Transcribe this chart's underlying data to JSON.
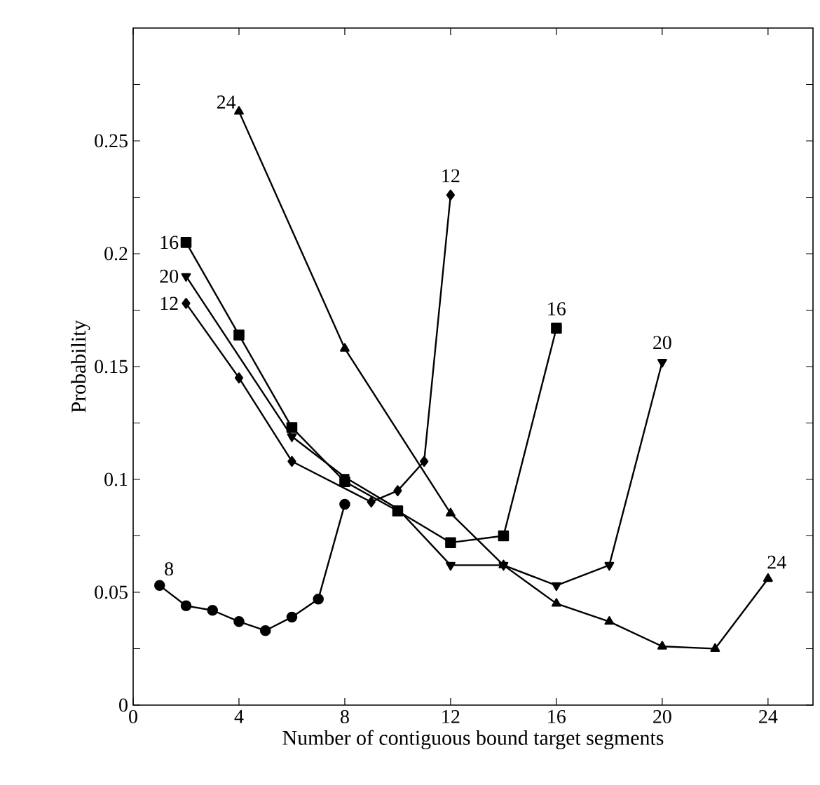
{
  "chart_data": {
    "type": "line",
    "xlabel": "Number of contiguous bound target segments",
    "ylabel": "Probability",
    "xlim": [
      0,
      25.7
    ],
    "ylim": [
      0,
      0.3
    ],
    "xticks": [
      0,
      4,
      8,
      12,
      16,
      20,
      24
    ],
    "yticks": [
      0,
      {
        "value": 0.025,
        "label": null
      },
      0.05,
      {
        "value": 0.075,
        "label": null
      },
      0.1,
      {
        "value": 0.125,
        "label": null
      },
      0.15,
      {
        "value": 0.175,
        "label": null
      },
      0.2,
      {
        "value": 0.225,
        "label": null
      },
      0.25,
      {
        "value": 0.275,
        "label": null
      }
    ],
    "line_style": "solid",
    "series": [
      {
        "color": "#000000",
        "marker": "circle",
        "x": [
          1,
          2,
          3,
          4,
          5,
          6,
          7,
          8
        ],
        "values": [
          0.053,
          0.044,
          0.042,
          0.037,
          0.033,
          0.039,
          0.047,
          0.089
        ]
      },
      {
        "color": "#000000",
        "marker": "diamond",
        "x": [
          2,
          4,
          6,
          9,
          10,
          11,
          12
        ],
        "values": [
          0.178,
          0.145,
          0.108,
          0.09,
          0.095,
          0.108,
          0.226
        ]
      },
      {
        "color": "#000000",
        "marker": "square",
        "x": [
          2,
          4,
          6,
          8,
          10,
          12,
          14,
          16
        ],
        "values": [
          0.205,
          0.164,
          0.123,
          0.099,
          0.086,
          0.072,
          0.075,
          0.167
        ]
      },
      {
        "color": "#000000",
        "marker": "triangle down",
        "x": [
          2,
          6,
          8,
          10,
          12,
          14,
          16,
          18,
          20
        ],
        "values": [
          0.19,
          0.119,
          0.101,
          0.087,
          0.062,
          0.062,
          0.053,
          0.062,
          0.152
        ]
      },
      {
        "color": "#000000",
        "marker": "triangle",
        "x": [
          4,
          8,
          12,
          14,
          16,
          18,
          20,
          22,
          24
        ],
        "values": [
          0.263,
          0.158,
          0.085,
          0.062,
          0.045,
          0.037,
          0.026,
          0.025,
          0.056
        ]
      }
    ],
    "annotations": [
      {
        "text": "8",
        "x": 1,
        "y": 0.053
      },
      {
        "text": "12",
        "x": 2,
        "y": 0.178
      },
      {
        "text": "12",
        "x": 12,
        "y": 0.226
      },
      {
        "text": "16",
        "x": 2,
        "y": 0.205
      },
      {
        "text": "16",
        "x": 16,
        "y": 0.167
      },
      {
        "text": "20",
        "x": 2,
        "y": 0.19
      },
      {
        "text": "20",
        "x": 20,
        "y": 0.152
      },
      {
        "text": "24",
        "x": 4,
        "y": 0.263
      },
      {
        "text": "24",
        "x": 24,
        "y": 0.056
      }
    ]
  }
}
